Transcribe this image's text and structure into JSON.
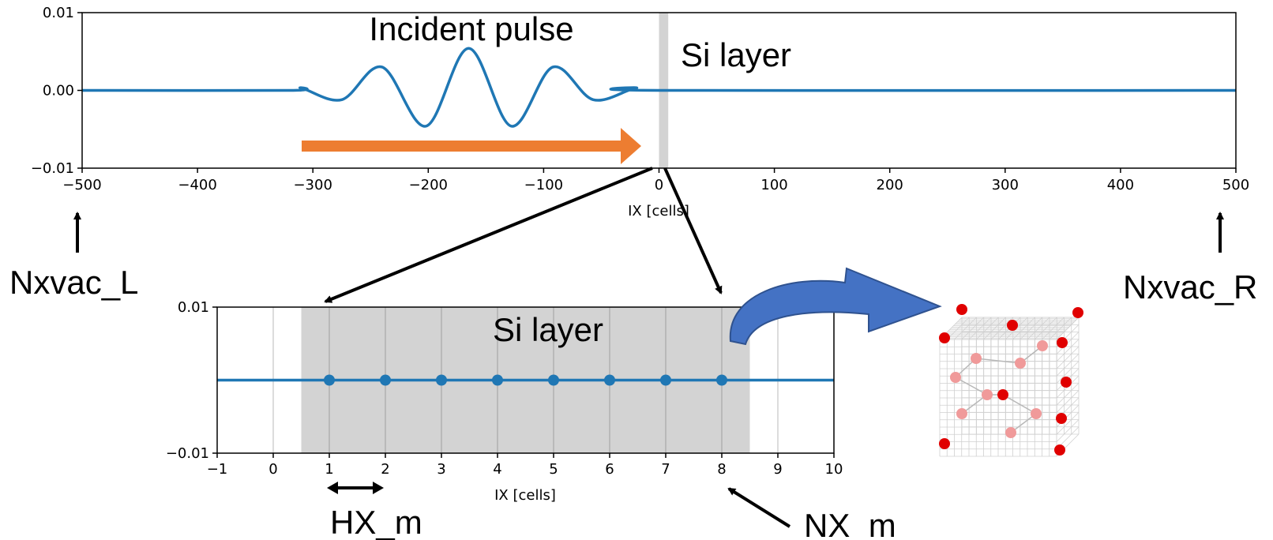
{
  "top_panel": {
    "pulse_label": "Incident pulse",
    "layer_label": "Si layer",
    "xlabel": "IX [cells]",
    "y_ticks": [
      "0.01",
      "0.00",
      "−0.01"
    ],
    "x_ticks": [
      "−500",
      "−400",
      "−300",
      "−200",
      "−100",
      "0",
      "100",
      "200",
      "300",
      "400",
      "500"
    ]
  },
  "bottom_panel": {
    "layer_label": "Si layer",
    "xlabel": "IX [cells]",
    "y_ticks": [
      "0.01",
      "−0.01"
    ],
    "x_ticks": [
      "−1",
      "0",
      "1",
      "2",
      "3",
      "4",
      "5",
      "6",
      "7",
      "8",
      "9",
      "10"
    ],
    "grid_points": [
      1,
      2,
      3,
      4,
      5,
      6,
      7,
      8
    ]
  },
  "labels": {
    "left_boundary": "Nxvac_L",
    "right_boundary": "Nxvac_R",
    "spacing": "HX_m",
    "count": "NX_m"
  },
  "colors": {
    "wave": "#1f77b4",
    "arrow": "#ed7d31",
    "layer_fill": "#d3d3d3",
    "curved_arrow": "#4472c4",
    "atom": "#e00000"
  },
  "chart_data": [
    {
      "type": "line",
      "title": "",
      "xlabel": "IX [cells]",
      "ylabel": "",
      "xlim": [
        -500,
        500
      ],
      "ylim": [
        -0.01,
        0.01
      ],
      "shaded_region": [
        0,
        8
      ],
      "series": [
        {
          "x": [
            -500,
            -320,
            -310,
            -275,
            -240,
            -202,
            -165,
            -128,
            -92,
            -57,
            -20,
            0,
            500
          ],
          "values": [
            0,
            0,
            0.0003,
            -0.0012,
            0.003,
            -0.0046,
            0.0054,
            -0.0046,
            0.003,
            -0.0012,
            0.0003,
            0,
            0
          ]
        }
      ]
    },
    {
      "type": "scatter",
      "title": "",
      "xlabel": "IX [cells]",
      "ylabel": "",
      "xlim": [
        -1,
        10
      ],
      "ylim": [
        -0.01,
        0.01
      ],
      "shaded_region": [
        0.5,
        8.5
      ],
      "series": [
        {
          "x": [
            1,
            2,
            3,
            4,
            5,
            6,
            7,
            8
          ],
          "values": [
            0,
            0,
            0,
            0,
            0,
            0,
            0,
            0
          ]
        }
      ]
    }
  ]
}
